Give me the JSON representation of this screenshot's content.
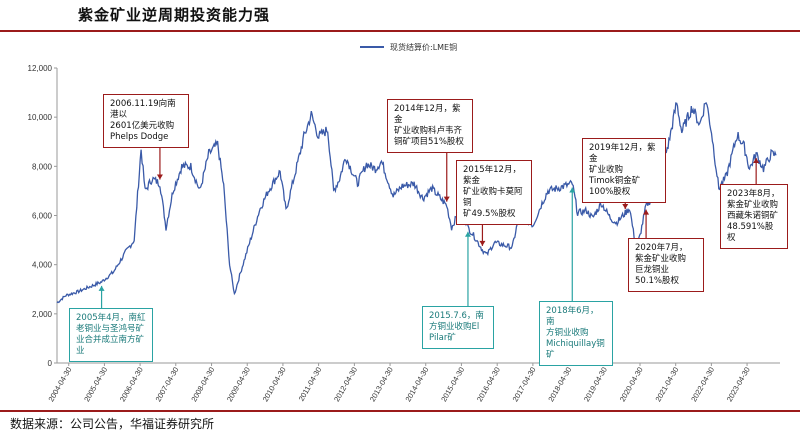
{
  "header": {
    "title": "紫金矿业逆周期投资能力强"
  },
  "footer": {
    "source": "数据来源：公司公告，华福证券研究所"
  },
  "colors": {
    "line": "#3a5aa8",
    "red_annotation": "#9b1b1b",
    "teal_annotation": "#2aa3a3",
    "rule": "#9b1b1b"
  },
  "chart_data": {
    "type": "line",
    "title": "",
    "ylabel": "",
    "xlabel": "",
    "legend": {
      "position": "top-center",
      "label": "现货结算价:LME铜"
    },
    "ylim": [
      0,
      12000
    ],
    "yticks": [
      "0",
      "2,000",
      "4,000",
      "6,000",
      "8,000",
      "10,000",
      "12,000"
    ],
    "xticks": [
      "2004-04-30",
      "2005-04-30",
      "2006-04-30",
      "2007-04-30",
      "2008-04-30",
      "2009-04-30",
      "2010-04-30",
      "2011-04-30",
      "2012-04-30",
      "2013-04-30",
      "2014-04-30",
      "2015-04-30",
      "2016-04-30",
      "2017-04-30",
      "2018-04-30",
      "2019-04-30",
      "2020-04-30",
      "2021-04-30",
      "2022-04-30",
      "2023-04-30"
    ],
    "series": [
      {
        "name": "现货结算价:LME铜",
        "points": [
          [
            "2004-01-01",
            2450
          ],
          [
            "2004-04-01",
            2750
          ],
          [
            "2004-08-01",
            2900
          ],
          [
            "2004-12-01",
            3100
          ],
          [
            "2005-04-01",
            3300
          ],
          [
            "2005-08-01",
            3700
          ],
          [
            "2005-12-01",
            4500
          ],
          [
            "2006-03-01",
            5000
          ],
          [
            "2006-05-10",
            8700
          ],
          [
            "2006-06-20",
            7000
          ],
          [
            "2006-09-01",
            7500
          ],
          [
            "2006-11-19",
            7300
          ],
          [
            "2007-01-20",
            5500
          ],
          [
            "2007-04-01",
            7000
          ],
          [
            "2007-07-01",
            8000
          ],
          [
            "2007-10-01",
            8000
          ],
          [
            "2008-01-01",
            7000
          ],
          [
            "2008-04-01",
            8500
          ],
          [
            "2008-07-01",
            8900
          ],
          [
            "2008-09-01",
            7200
          ],
          [
            "2008-11-01",
            4000
          ],
          [
            "2008-12-20",
            2800
          ],
          [
            "2009-03-01",
            3800
          ],
          [
            "2009-06-01",
            5000
          ],
          [
            "2009-09-01",
            6200
          ],
          [
            "2009-12-01",
            7000
          ],
          [
            "2010-04-01",
            7800
          ],
          [
            "2010-06-01",
            6200
          ],
          [
            "2010-09-01",
            7700
          ],
          [
            "2010-12-01",
            9200
          ],
          [
            "2011-02-14",
            10100
          ],
          [
            "2011-05-01",
            9200
          ],
          [
            "2011-08-01",
            9500
          ],
          [
            "2011-10-01",
            7000
          ],
          [
            "2011-12-01",
            7500
          ],
          [
            "2012-02-01",
            8400
          ],
          [
            "2012-06-01",
            7300
          ],
          [
            "2012-09-01",
            8100
          ],
          [
            "2012-12-01",
            7900
          ],
          [
            "2013-02-01",
            8200
          ],
          [
            "2013-06-01",
            6800
          ],
          [
            "2013-09-01",
            7200
          ],
          [
            "2014-01-01",
            7300
          ],
          [
            "2014-04-01",
            6700
          ],
          [
            "2014-07-01",
            7100
          ],
          [
            "2014-12-01",
            6400
          ],
          [
            "2015-01-20",
            5500
          ],
          [
            "2015-05-01",
            6400
          ],
          [
            "2015-07-06",
            5500
          ],
          [
            "2015-09-01",
            5200
          ],
          [
            "2015-12-01",
            4600
          ],
          [
            "2016-01-15",
            4400
          ],
          [
            "2016-04-01",
            4900
          ],
          [
            "2016-07-01",
            4800
          ],
          [
            "2016-10-01",
            4700
          ],
          [
            "2016-11-30",
            5800
          ],
          [
            "2017-02-01",
            5900
          ],
          [
            "2017-05-01",
            5600
          ],
          [
            "2017-08-01",
            6500
          ],
          [
            "2017-10-01",
            7000
          ],
          [
            "2018-01-01",
            7100
          ],
          [
            "2018-06-07",
            7300
          ],
          [
            "2018-08-01",
            6100
          ],
          [
            "2018-11-01",
            6200
          ],
          [
            "2019-01-01",
            5900
          ],
          [
            "2019-04-01",
            6500
          ],
          [
            "2019-07-01",
            5900
          ],
          [
            "2019-09-01",
            5700
          ],
          [
            "2019-12-01",
            6100
          ],
          [
            "2020-01-15",
            6300
          ],
          [
            "2020-03-20",
            4650
          ],
          [
            "2020-05-01",
            5200
          ],
          [
            "2020-07-01",
            6400
          ],
          [
            "2020-09-01",
            6700
          ],
          [
            "2020-12-01",
            7800
          ],
          [
            "2021-02-20",
            9000
          ],
          [
            "2021-05-10",
            10600
          ],
          [
            "2021-07-01",
            9400
          ],
          [
            "2021-10-15",
            10400
          ],
          [
            "2022-01-01",
            9700
          ],
          [
            "2022-03-07",
            10700
          ],
          [
            "2022-05-01",
            9400
          ],
          [
            "2022-07-15",
            7100
          ],
          [
            "2022-10-01",
            7600
          ],
          [
            "2023-01-20",
            9300
          ],
          [
            "2023-04-01",
            8800
          ],
          [
            "2023-05-25",
            7900
          ],
          [
            "2023-08-01",
            8500
          ],
          [
            "2023-10-15",
            7900
          ],
          [
            "2024-01-01",
            8500
          ],
          [
            "2024-02-20",
            8450
          ]
        ]
      }
    ],
    "annotations": [
      {
        "style": "red",
        "text": "2006.11.19向南港以\n2601亿美元收购\nPhelps Dodge",
        "date": "2006-11-19",
        "value": 7300,
        "direction": "down"
      },
      {
        "style": "red",
        "text": "2014年12月，紫金\n矿业收购科卢韦齐\n铜矿项目51%股权",
        "date": "2014-12-01",
        "value": 6400,
        "direction": "down"
      },
      {
        "style": "red",
        "text": "2015年12月，紫金\n矿业收购卡莫阿铜\n矿49.5%股权",
        "date": "2015-12-01",
        "value": 4600,
        "direction": "down"
      },
      {
        "style": "red",
        "text": "2019年12月，紫金\n矿业收购\nTimok铜金矿\n100%股权",
        "date": "2019-12-01",
        "value": 6100,
        "direction": "down"
      },
      {
        "style": "red",
        "text": "2020年7月，\n紫金矿业收购\n巨龙铜业\n50.1%股权",
        "date": "2020-07-01",
        "value": 6400,
        "direction": "up"
      },
      {
        "style": "red",
        "text": "2023年8月，\n紫金矿业收购\n西藏朱诺铜矿\n48.591%股权",
        "date": "2023-08-01",
        "value": 8500,
        "direction": "up"
      },
      {
        "style": "teal",
        "text": "2005年4月，南紅\n老铜业与圣鸿号矿\n业合并成立南方矿\n业",
        "date": "2005-04-01",
        "value": 3300,
        "direction": "up"
      },
      {
        "style": "teal",
        "text": "2015.7.6，南\n方铜业收购El\nPilar矿",
        "date": "2015-07-06",
        "value": 5500,
        "direction": "up"
      },
      {
        "style": "teal",
        "text": "2018年6月，南\n方铜业收购\nMichiquillay铜\n矿",
        "date": "2018-06-07",
        "value": 7300,
        "direction": "up"
      }
    ]
  }
}
